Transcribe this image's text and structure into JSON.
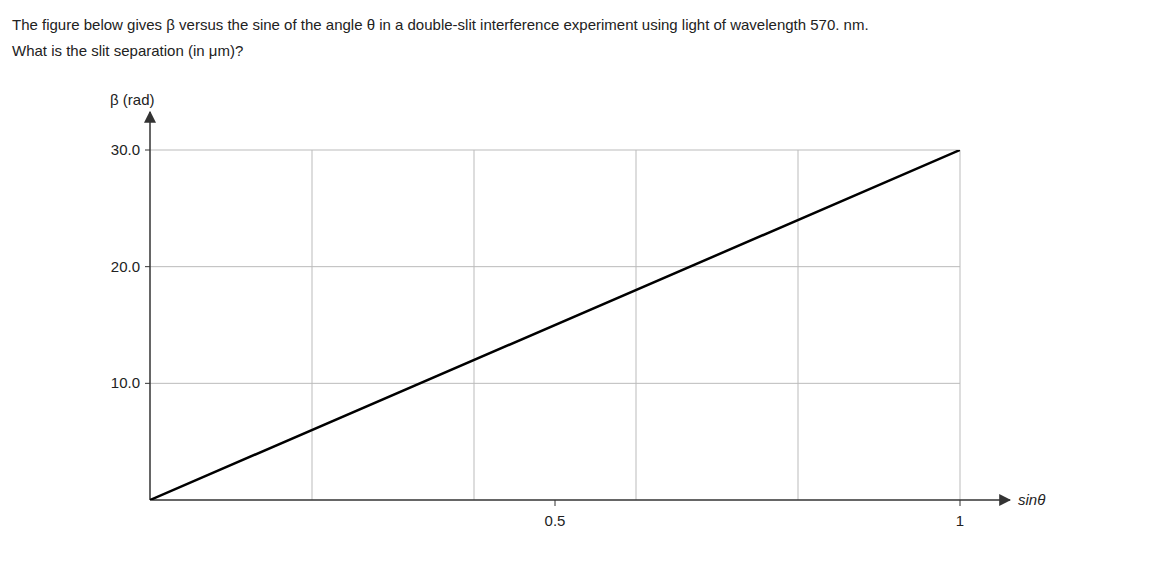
{
  "chart_data": {
    "type": "line",
    "title": "The figure below gives β versus the sine of the angle θ in a double-slit interference experiment using light of wavelength 570. nm.",
    "subtitle": "What is the slit separation (in μm)?",
    "xlabel": "sinθ",
    "ylabel": "β (rad)",
    "x": [
      0,
      1.0
    ],
    "values": [
      0,
      30.0
    ],
    "color": "#000000",
    "xlim": [
      0,
      1.0
    ],
    "ylim": [
      0,
      30.0
    ],
    "xticks": [
      0.5,
      1
    ],
    "yticks": [
      {
        "value": 10.0,
        "label": "10.0"
      },
      {
        "value": 20.0,
        "label": "20.0"
      },
      {
        "value": 30.0,
        "label": "30.0"
      }
    ],
    "x_grid": [
      0.2,
      0.4,
      0.6,
      0.8,
      1.0
    ],
    "grid": true
  }
}
